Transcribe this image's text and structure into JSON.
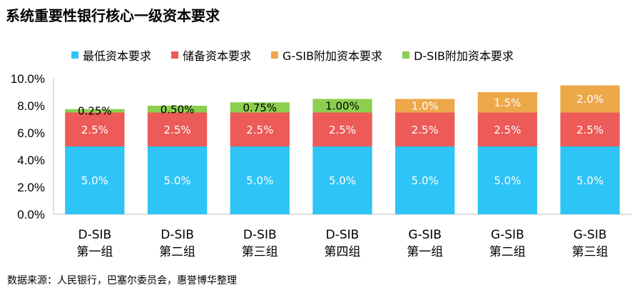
{
  "chart_data": {
    "type": "bar",
    "stacked": true,
    "title": "系统重要性银行核心一级资本要求",
    "categories": [
      [
        "D-SIB",
        "第一组"
      ],
      [
        "D-SIB",
        "第二组"
      ],
      [
        "D-SIB",
        "第三组"
      ],
      [
        "D-SIB",
        "第四组"
      ],
      [
        "G-SIB",
        "第一组"
      ],
      [
        "G-SIB",
        "第二组"
      ],
      [
        "G-SIB",
        "第三组"
      ]
    ],
    "series": [
      {
        "name": "最低资本要求",
        "color": "#2EC4F5",
        "values": [
          5.0,
          5.0,
          5.0,
          5.0,
          5.0,
          5.0,
          5.0
        ],
        "labels": [
          "5.0%",
          "5.0%",
          "5.0%",
          "5.0%",
          "5.0%",
          "5.0%",
          "5.0%"
        ],
        "label_color": "#ffffff"
      },
      {
        "name": "储备资本要求",
        "color": "#EC5B57",
        "values": [
          2.5,
          2.5,
          2.5,
          2.5,
          2.5,
          2.5,
          2.5
        ],
        "labels": [
          "2.5%",
          "2.5%",
          "2.5%",
          "2.5%",
          "2.5%",
          "2.5%",
          "2.5%"
        ],
        "label_color": "#ffffff"
      },
      {
        "name": "G-SIB附加资本要求",
        "color": "#EDA84A",
        "values": [
          0,
          0,
          0,
          0,
          1.0,
          1.5,
          2.0
        ],
        "labels": [
          "",
          "",
          "",
          "",
          "1.0%",
          "1.5%",
          "2.0%"
        ],
        "label_color": "#ffffff"
      },
      {
        "name": "D-SIB附加资本要求",
        "color": "#8CCF4F",
        "values": [
          0.25,
          0.5,
          0.75,
          1.0,
          0,
          0,
          0
        ],
        "labels": [
          "0.25%",
          "0.50%",
          "0.75%",
          "1.00%",
          "",
          "",
          ""
        ],
        "label_color": "#000000"
      }
    ],
    "legend_order": [
      0,
      1,
      2,
      3
    ],
    "legend_position": "top",
    "ylim": [
      0,
      10
    ],
    "yticks": [
      "0.0%",
      "2.0%",
      "4.0%",
      "6.0%",
      "8.0%",
      "10.0%"
    ],
    "grid": false
  },
  "source_note": "数据来源：人民银行，巴塞尔委员会，惠誉博华整理"
}
